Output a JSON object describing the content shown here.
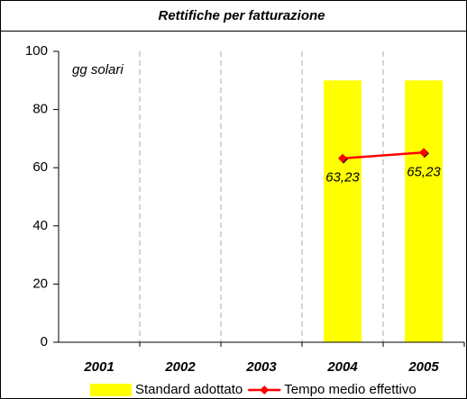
{
  "chart_data": {
    "type": "bar",
    "title": "Rettifiche per fatturazione",
    "annotation": "gg solari",
    "categories": [
      "2001",
      "2002",
      "2003",
      "2004",
      "2005"
    ],
    "series": [
      {
        "name": "Standard adottato",
        "type": "bar",
        "color": "#ffff00",
        "values": [
          null,
          null,
          null,
          90,
          90
        ]
      },
      {
        "name": "Tempo medio effettivo",
        "type": "line",
        "color": "#ff0000",
        "values": [
          null,
          null,
          null,
          63.23,
          65.23
        ],
        "value_labels": [
          null,
          null,
          null,
          "63,23",
          "65,23"
        ]
      }
    ],
    "ylim": [
      0,
      100
    ],
    "yticks": [
      0,
      20,
      40,
      60,
      80,
      100
    ],
    "grid": true,
    "legend": "bottom"
  }
}
